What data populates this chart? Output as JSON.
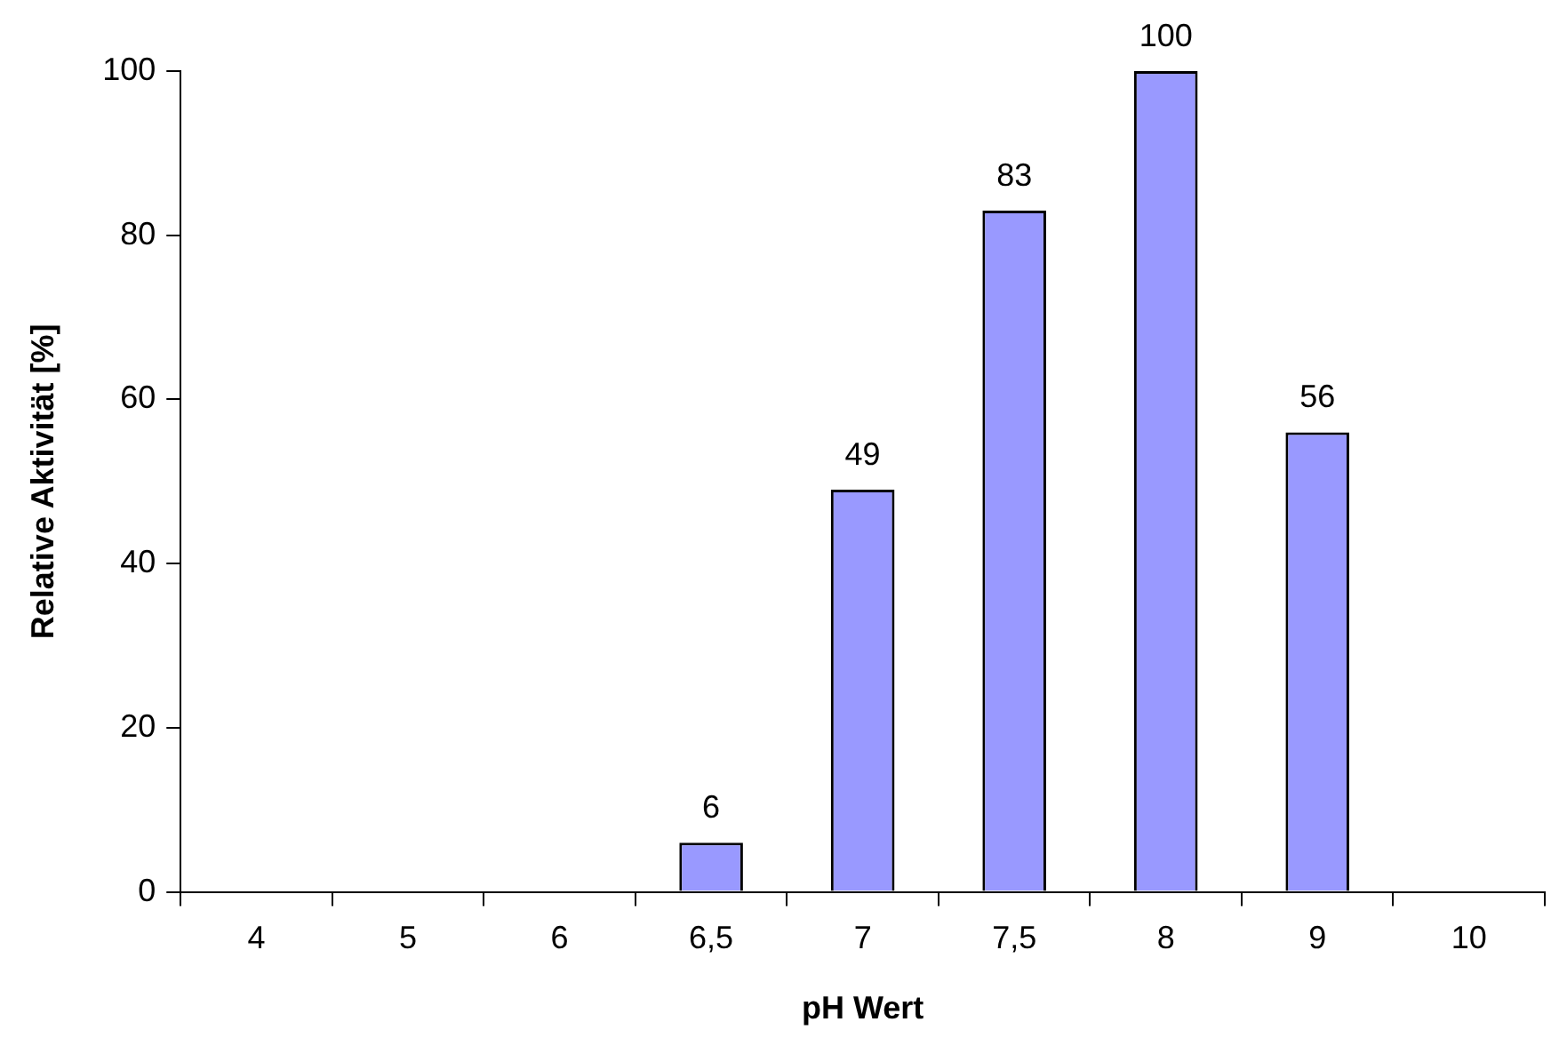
{
  "chart_data": {
    "type": "bar",
    "xlabel": "pH Wert",
    "ylabel": "Relative Aktivität [%]",
    "categories": [
      "4",
      "5",
      "6",
      "6,5",
      "7",
      "7,5",
      "8",
      "9",
      "10"
    ],
    "values": [
      null,
      null,
      null,
      6,
      49,
      83,
      100,
      56,
      null
    ],
    "value_labels": [
      null,
      null,
      null,
      "6",
      "49",
      "83",
      "100",
      "56",
      null
    ],
    "color": "#9999ff",
    "ylim": [
      0,
      100
    ],
    "yticks": [
      0,
      20,
      40,
      60,
      80,
      100
    ],
    "grid": false,
    "legend": false
  }
}
